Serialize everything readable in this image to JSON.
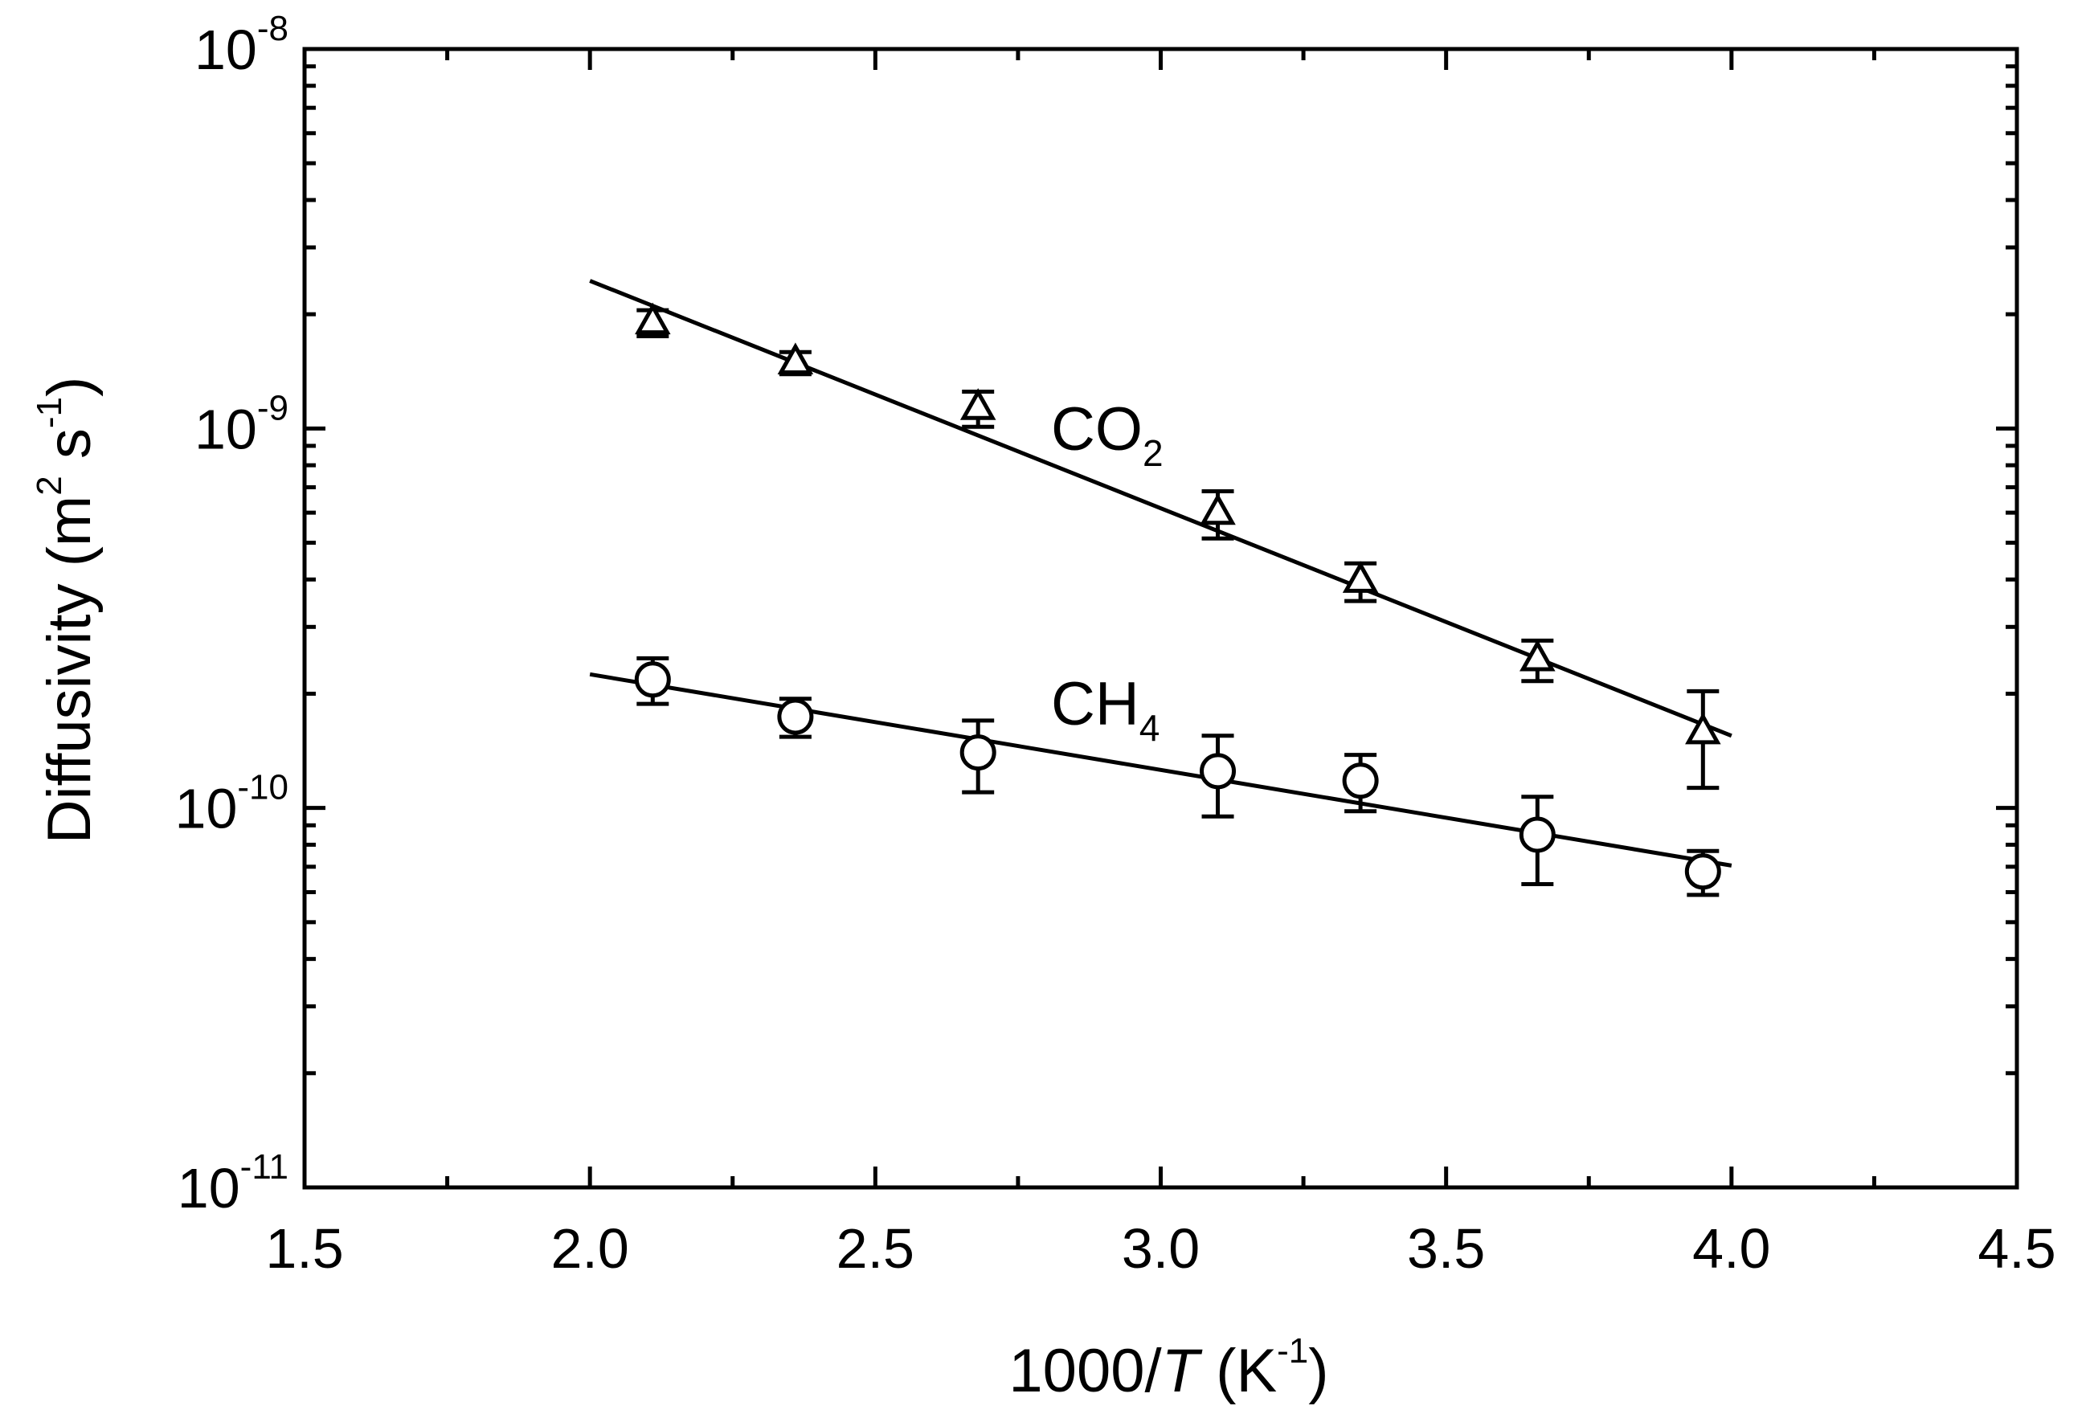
{
  "chart_data": {
    "type": "scatter",
    "xlabel": [
      "1000/",
      "T",
      " (K",
      "-1",
      ")"
    ],
    "ylabel": [
      "Diffusivity (m",
      "2",
      " s",
      "-1",
      ")"
    ],
    "xlim": [
      1.5,
      4.5
    ],
    "xticks": [
      {
        "value": 1.5,
        "label": "1.5"
      },
      {
        "value": 2.0,
        "label": "2.0"
      },
      {
        "value": 2.5,
        "label": "2.5"
      },
      {
        "value": 3.0,
        "label": "3.0"
      },
      {
        "value": 3.5,
        "label": "3.5"
      },
      {
        "value": 4.0,
        "label": "4.0"
      },
      {
        "value": 4.5,
        "label": "4.5"
      }
    ],
    "ylim": [
      1e-11,
      1e-08
    ],
    "yticks": [
      {
        "value": 1e-11,
        "label": [
          "10",
          "-11"
        ]
      },
      {
        "value": 1e-10,
        "label": [
          "10",
          "-10"
        ]
      },
      {
        "value": 1e-09,
        "label": [
          "10",
          "-9"
        ]
      },
      {
        "value": 1e-08,
        "label": [
          "10",
          "-8"
        ]
      }
    ],
    "ylog": true,
    "grid": false,
    "series": [
      {
        "name": [
          "CO",
          "2"
        ],
        "marker": "triangle",
        "color": "#000000",
        "x": [
          2.11,
          2.36,
          2.68,
          3.1,
          3.35,
          3.66,
          3.95
        ],
        "values": [
          1.9e-09,
          1.49e-09,
          1.13e-09,
          5.98e-10,
          3.96e-10,
          2.46e-10,
          1.58e-10
        ],
        "errors": [
          1.5e-10,
          1e-10,
          1.2e-10,
          8.5e-11,
          4.5e-11,
          3e-11,
          4.5e-11
        ],
        "fit": {
          "x": [
            2.0,
            4.0
          ],
          "values": [
            2.45e-09,
            1.55e-10
          ]
        }
      },
      {
        "name": [
          "CH",
          "4"
        ],
        "marker": "circle",
        "color": "#000000",
        "x": [
          2.11,
          2.36,
          2.68,
          3.1,
          3.35,
          3.66,
          3.95
        ],
        "values": [
          2.18e-10,
          1.74e-10,
          1.4e-10,
          1.25e-10,
          1.18e-10,
          8.5e-11,
          6.8e-11
        ],
        "errors": [
          3e-11,
          2e-11,
          3e-11,
          3e-11,
          2e-11,
          2.2e-11,
          9e-12
        ],
        "fit": {
          "x": [
            2.0,
            4.0
          ],
          "values": [
            2.25e-10,
            7.05e-11
          ]
        }
      }
    ]
  }
}
